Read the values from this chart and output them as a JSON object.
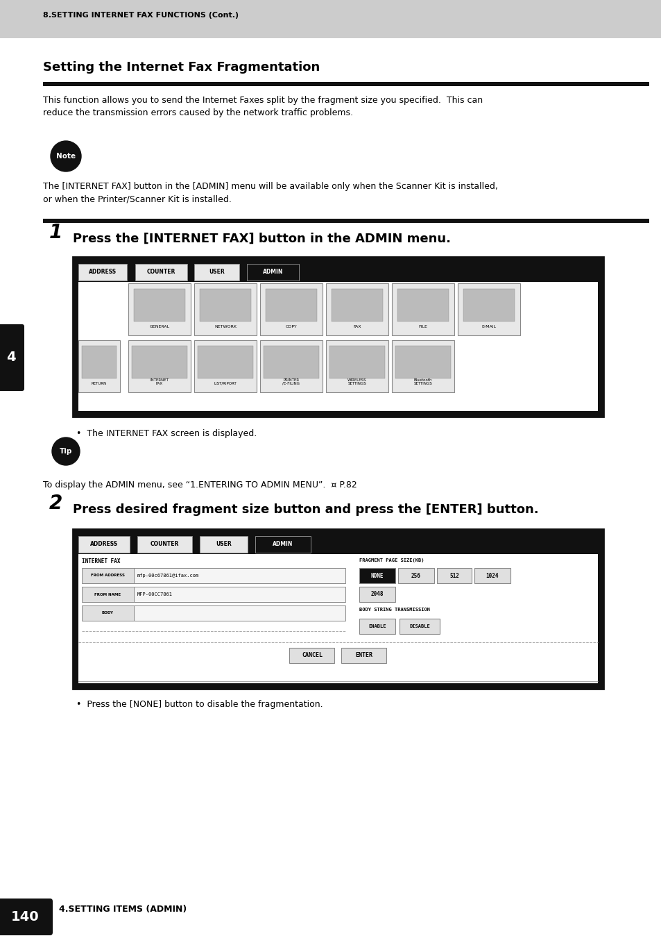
{
  "header_bg": "#cccccc",
  "header_text": "8.SETTING INTERNET FAX FUNCTIONS (Cont.)",
  "page_bg": "#ffffff",
  "section_title": "Setting the Internet Fax Fragmentation",
  "body_text1": "This function allows you to send the Internet Faxes split by the fragment size you specified.  This can\nreduce the transmission errors caused by the network traffic problems.",
  "note_text": "Note",
  "note_body": "The [INTERNET FAX] button in the [ADMIN] menu will be available only when the Scanner Kit is installed,\nor when the Printer/Scanner Kit is installed.",
  "step1_num": "1",
  "step1_text": "Press the [INTERNET FAX] button in the ADMIN menu.",
  "bullet1": "The INTERNET FAX screen is displayed.",
  "tip_text": "Tip",
  "tip_body": "To display the ADMIN menu, see “1.ENTERING TO ADMIN MENU”.  ¤ P.82",
  "step2_num": "2",
  "step2_text": "Press desired fragment size button and press the [ENTER] button.",
  "bullet2": "Press the [NONE] button to disable the fragmentation.",
  "footer_text": "140",
  "footer_sub": "4.SETTING ITEMS (ADMIN)",
  "tab_labels": [
    "ADDRESS",
    "COUNTER",
    "USER",
    "ADMIN"
  ],
  "icons_row1": [
    "GENERAL",
    "NETWORK",
    "COPY",
    "FAX",
    "FILE",
    "E-MAIL"
  ],
  "icons_row2": [
    "RETURN",
    "INTERNET\nFAX",
    "LIST/RIPORT",
    "PRINTER\n/E-FILING",
    "WIRELESS\nSETTINGS",
    "Bluetooth\nSETTINGS"
  ]
}
